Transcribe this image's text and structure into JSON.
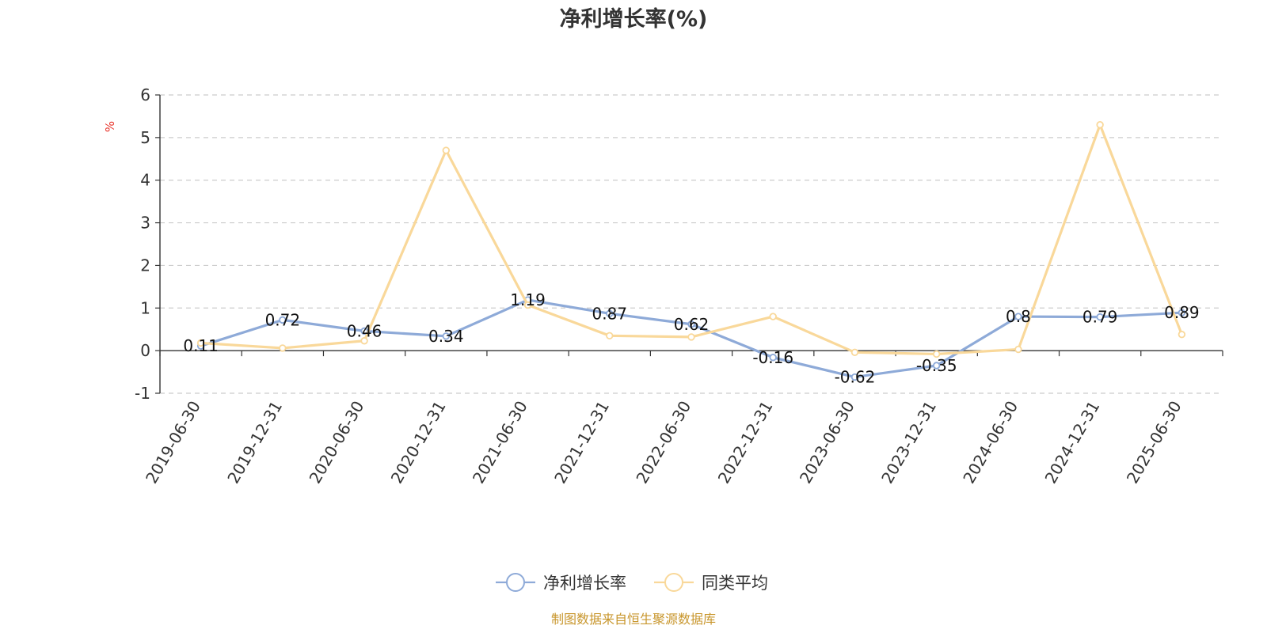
{
  "chart_data": {
    "type": "line",
    "title": "净利增长率(%)",
    "ylabel": "%",
    "ylim": [
      -1,
      6
    ],
    "yticks": [
      -1,
      0,
      1,
      2,
      3,
      4,
      5,
      6
    ],
    "grid": true,
    "legend_position": "bottom-center",
    "categories": [
      "2019-06-30",
      "2019-12-31",
      "2020-06-30",
      "2020-12-31",
      "2021-06-30",
      "2021-12-31",
      "2022-06-30",
      "2022-12-31",
      "2023-06-30",
      "2023-12-31",
      "2024-06-30",
      "2024-12-31",
      "2025-06-30"
    ],
    "series": [
      {
        "name": "净利增长率",
        "color": "#8eaad8",
        "values": [
          0.11,
          0.72,
          0.46,
          0.34,
          1.19,
          0.87,
          0.62,
          -0.16,
          -0.62,
          -0.35,
          0.8,
          0.79,
          0.89
        ],
        "labels": [
          "0.11",
          "0.72",
          "0.46",
          "0.34",
          "1.19",
          "0.87",
          "0.62",
          "-0.16",
          "-0.62",
          "-0.35",
          "0.8",
          "0.79",
          "0.89"
        ]
      },
      {
        "name": "同类平均",
        "color": "#f9d89a",
        "values": [
          0.18,
          0.06,
          0.23,
          4.7,
          1.07,
          0.35,
          0.32,
          0.8,
          -0.04,
          -0.08,
          0.03,
          5.3,
          0.38
        ]
      }
    ],
    "source": "制图数据来自恒生聚源数据库"
  }
}
